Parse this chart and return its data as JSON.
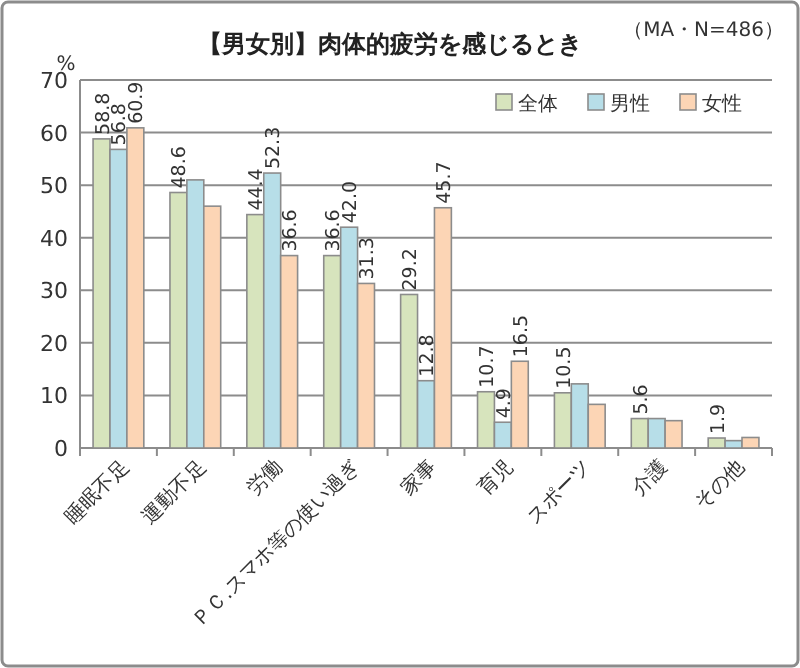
{
  "chart_data": {
    "type": "bar",
    "title": "【男女別】肉体的疲労を感じるとき",
    "ylabel": "%",
    "annotations": [
      "（MA・N=486）"
    ],
    "categories": [
      "睡眠不足",
      "運動不足",
      "労働",
      "ＰＣ.スマホ等の使い過ぎ",
      "家事",
      "育児",
      "スポーツ",
      "介護",
      "その他"
    ],
    "series": [
      {
        "name": "全体",
        "color": "#d7e4bd",
        "values": [
          58.8,
          48.6,
          44.4,
          36.6,
          29.2,
          10.7,
          10.5,
          5.6,
          1.9
        ],
        "value_labels": [
          "58.8",
          "48.6",
          "44.4",
          "36.6",
          "29.2",
          "10.7",
          "10.5",
          "5.6",
          "1.9"
        ]
      },
      {
        "name": "男性",
        "color": "#b7dee8",
        "values": [
          56.8,
          51.0,
          52.3,
          42.0,
          12.8,
          4.9,
          12.2,
          5.6,
          1.4
        ],
        "value_labels": [
          "56.8",
          null,
          "52.3",
          "42.0",
          "12.8",
          "4.9",
          null,
          null,
          null
        ]
      },
      {
        "name": "女性",
        "color": "#fcd5b5",
        "values": [
          60.9,
          46.0,
          36.6,
          31.3,
          45.7,
          16.5,
          8.3,
          5.2,
          2.0
        ],
        "value_labels": [
          "60.9",
          null,
          "36.6",
          "31.3",
          "45.7",
          "16.5",
          null,
          null,
          null
        ]
      }
    ],
    "ylim": [
      0,
      70
    ],
    "yticks": [
      0,
      10,
      20,
      30,
      40,
      50,
      60,
      70
    ],
    "grid": "y",
    "legend": "top right"
  }
}
